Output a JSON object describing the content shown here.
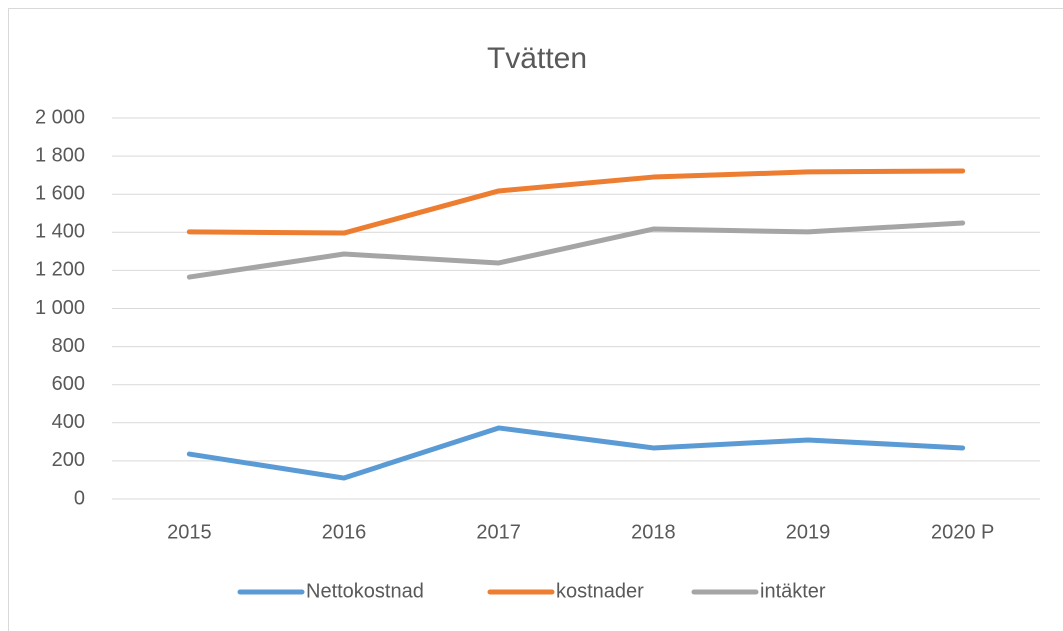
{
  "chart_data": {
    "type": "line",
    "title": "Tvätten",
    "categories": [
      "2015",
      "2016",
      "2017",
      "2018",
      "2019",
      "2020 P"
    ],
    "series": [
      {
        "name": "Nettokostnad",
        "color": "#5b9bd5",
        "values": [
          236,
          110,
          373,
          268,
          310,
          268
        ]
      },
      {
        "name": "kostnader",
        "color": "#ed7d31",
        "values": [
          1402,
          1396,
          1617,
          1690,
          1717,
          1722
        ]
      },
      {
        "name": "intäkter",
        "color": "#a5a5a5",
        "values": [
          1165,
          1286,
          1239,
          1417,
          1402,
          1449
        ]
      }
    ],
    "ylim": [
      0,
      2000
    ],
    "yticks": [
      0,
      200,
      400,
      600,
      800,
      {
        "value": 1000,
        "label": "1 000"
      },
      {
        "value": 1200,
        "label": "1 200"
      },
      {
        "value": 1400,
        "label": "1 400"
      },
      {
        "value": 1600,
        "label": "1 600"
      },
      {
        "value": 1800,
        "label": "1 800"
      },
      {
        "value": 2000,
        "label": "2 000"
      }
    ],
    "grid": true,
    "legend": "bottom"
  }
}
